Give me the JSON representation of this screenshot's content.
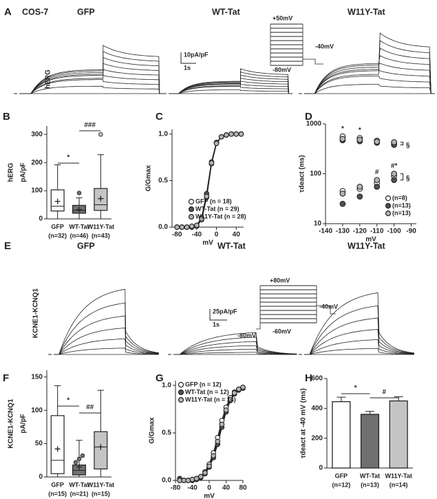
{
  "trace_panels": [
    {
      "label": "A",
      "cell": "COS-7",
      "titles": [
        "GFP",
        "WT-Tat",
        "W11Y-Tat"
      ],
      "row_label": "hERG",
      "scale_current": "10pA/pF",
      "scale_time": "1s",
      "protocol": [
        "+50mV",
        "-40mV",
        "-80mV"
      ]
    },
    {
      "label": "E",
      "titles": [
        "GFP",
        "WT-Tat",
        "W11Y-Tat"
      ],
      "row_label": "KCNE1-KCNQ1",
      "scale_current": "25pA/pF",
      "scale_time": "1s",
      "protocol": [
        "+80mV",
        "-40mV",
        "-80mV",
        "-60mV"
      ]
    }
  ],
  "chart_data": [
    {
      "type": "box",
      "label": "B",
      "side_label": "hERG",
      "ylabel": "pA/pF",
      "categories": [
        "GFP",
        "WT-Tat",
        "W11Y-Tat"
      ],
      "n_labels": [
        "(n=32)",
        "(n=46)",
        "(n=43)"
      ],
      "colors": [
        "#ffffff",
        "#707070",
        "#c4c4c4"
      ],
      "ylim": [
        0,
        330
      ],
      "yticks": [
        0,
        100,
        200,
        300
      ],
      "boxes": [
        {
          "min": 0,
          "q1": 28,
          "median": 45,
          "q3": 103,
          "max": 192,
          "mean": 62,
          "outliers": []
        },
        {
          "min": 0,
          "q1": 20,
          "median": 30,
          "q3": 48,
          "max": 75,
          "mean": 33,
          "outliers": [
            92
          ]
        },
        {
          "min": 0,
          "q1": 30,
          "median": 50,
          "q3": 108,
          "max": 228,
          "mean": 72,
          "outliers": [
            300
          ]
        }
      ],
      "annotations": [
        "*",
        "###"
      ]
    },
    {
      "type": "line",
      "label": "C",
      "xlabel": "mV",
      "ylabel": "G/Gmax",
      "legend": "lower right",
      "x": [
        -80,
        -70,
        -60,
        -50,
        -40,
        -30,
        -20,
        -10,
        0,
        10,
        20,
        30,
        40,
        50
      ],
      "xlim": [
        -90,
        55
      ],
      "xticks": [
        -80,
        -40,
        0,
        40
      ],
      "ylim": [
        0,
        1.05
      ],
      "yticks": [
        {
          "value": 0,
          "label": "0.0"
        },
        {
          "value": 0.5,
          "label": "0.5"
        },
        {
          "value": 1,
          "label": "1.0"
        }
      ],
      "series": [
        {
          "name": "GFP (n = 18)",
          "color": "#ffffff",
          "values": [
            0,
            0,
            0,
            0,
            0.01,
            0.08,
            0.32,
            0.68,
            0.9,
            0.97,
            0.99,
            1,
            1,
            1
          ]
        },
        {
          "name": "WT-Tat (n = 29)",
          "color": "#505050",
          "values": [
            0,
            0,
            0,
            0,
            0.02,
            0.1,
            0.36,
            0.7,
            0.91,
            0.97,
            0.99,
            1,
            1,
            1
          ]
        },
        {
          "name": "W11Y-Tat (n = 28)",
          "color": "#b4b4b4",
          "values": [
            0,
            0,
            0,
            0.01,
            0.02,
            0.09,
            0.33,
            0.69,
            0.9,
            0.97,
            0.99,
            1,
            1,
            1
          ]
        }
      ]
    },
    {
      "type": "scatter",
      "label": "D",
      "xlabel": "mV",
      "ylabel": "τdeact (ms)",
      "yscale": "log",
      "legend": "lower right",
      "x": [
        -130,
        -120,
        -110,
        -100
      ],
      "xlim": [
        -140,
        -87
      ],
      "xticks": [
        -140,
        -130,
        -120,
        -110,
        -100,
        -90
      ],
      "ylim": [
        10,
        1000
      ],
      "yticks": [
        10,
        100,
        1000
      ],
      "series": [
        {
          "name": "(n=8)",
          "color": "#ffffff",
          "slow": [
            560,
            520,
            460,
            420
          ],
          "fast": [
            45,
            50,
            65,
            90
          ]
        },
        {
          "name": "(n=13)",
          "color": "#505050",
          "slow": [
            470,
            450,
            420,
            380
          ],
          "fast": [
            25,
            35,
            55,
            75
          ]
        },
        {
          "name": "(n=13)",
          "color": "#b4b4b4",
          "slow": [
            500,
            480,
            440,
            430
          ],
          "fast": [
            40,
            55,
            75,
            100
          ]
        }
      ],
      "annotations": [
        "*",
        "*",
        "#",
        "#*",
        "§",
        "§"
      ]
    },
    {
      "type": "box",
      "label": "F",
      "side_label": "KCNE1-KCNQ1",
      "ylabel": "pA/pF",
      "categories": [
        "GFP",
        "WT-Tat",
        "W11Y-Tat"
      ],
      "n_labels": [
        "(n=15)",
        "(n=21)",
        "(n=15)"
      ],
      "colors": [
        "#ffffff",
        "#707070",
        "#c4c4c4"
      ],
      "ylim": [
        0,
        160
      ],
      "yticks": [
        0,
        50,
        100,
        150
      ],
      "boxes": [
        {
          "min": 0,
          "q1": 5,
          "median": 25,
          "q3": 92,
          "max": 137,
          "mean": 42,
          "outliers": []
        },
        {
          "min": 0,
          "q1": 3,
          "median": 10,
          "q3": 18,
          "max": 55,
          "mean": 15,
          "outliers": [
            22,
            27,
            32
          ]
        },
        {
          "min": 0,
          "q1": 12,
          "median": 45,
          "q3": 68,
          "max": 130,
          "mean": 45,
          "outliers": []
        }
      ],
      "annotations": [
        "*",
        "##"
      ]
    },
    {
      "type": "line",
      "label": "G",
      "xlabel": "mV",
      "ylabel": "G/Gmax",
      "legend": "upper left",
      "x": [
        -70,
        -60,
        -50,
        -40,
        -30,
        -20,
        -10,
        0,
        10,
        20,
        30,
        40,
        50,
        60,
        70,
        80
      ],
      "xlim": [
        -80,
        80
      ],
      "xticks": [
        -80,
        -40,
        0,
        40,
        80
      ],
      "ylim": [
        0,
        1.05
      ],
      "yticks": [
        {
          "value": 0,
          "label": "0.0"
        },
        {
          "value": 0.5,
          "label": "0.5"
        },
        {
          "value": 1,
          "label": "1.0"
        }
      ],
      "series": [
        {
          "name": "GFP (n = 12)",
          "color": "#ffffff",
          "values": [
            0,
            0,
            0,
            0.01,
            0.02,
            0.04,
            0.09,
            0.17,
            0.29,
            0.45,
            0.63,
            0.77,
            0.87,
            0.93,
            0.96,
            0.98
          ]
        },
        {
          "name": "WT-Tat (n = 12)",
          "color": "#505050",
          "values": [
            0.02,
            0,
            0,
            0,
            0.01,
            0.03,
            0.07,
            0.14,
            0.24,
            0.38,
            0.56,
            0.72,
            0.84,
            0.91,
            0.95,
            0.97
          ]
        },
        {
          "name": "W11Y-Tat (n = 14)",
          "color": "#b4b4b4",
          "values": [
            0,
            0,
            0,
            0.01,
            0.02,
            0.04,
            0.08,
            0.15,
            0.26,
            0.41,
            0.59,
            0.74,
            0.85,
            0.92,
            0.96,
            0.98
          ]
        }
      ]
    },
    {
      "type": "bar",
      "label": "H",
      "ylabel": "τdeact at -40 mV (ms)",
      "categories": [
        "GFP",
        "WT-Tat",
        "W11Y-Tat"
      ],
      "n_labels": [
        "(n=12)",
        "(n=13)",
        "(n=14)"
      ],
      "colors": [
        "#ffffff",
        "#707070",
        "#c4c4c4"
      ],
      "values": [
        445,
        360,
        450
      ],
      "errors": [
        30,
        20,
        28
      ],
      "ylim": [
        0,
        600
      ],
      "yticks": [
        0,
        200,
        400,
        600
      ],
      "annotations": [
        "*",
        "#"
      ]
    }
  ]
}
